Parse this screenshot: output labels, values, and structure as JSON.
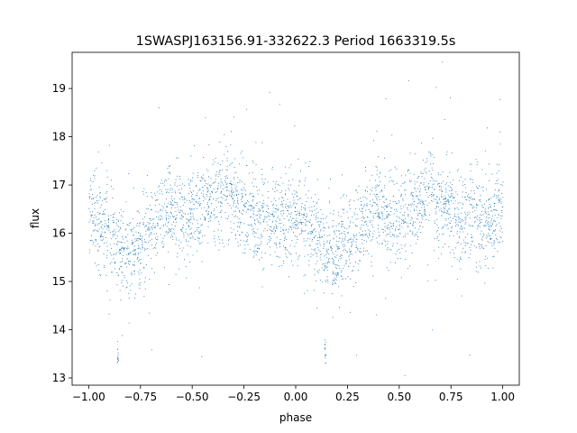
{
  "chart_data": {
    "type": "scatter",
    "title": "1SWASPJ163156.91-332622.3 Period 1663319.5s",
    "xlabel": "phase",
    "ylabel": "flux",
    "xlim": [
      -1.08,
      1.08
    ],
    "ylim": [
      12.85,
      19.75
    ],
    "xticks": [
      -1.0,
      -0.75,
      -0.5,
      -0.25,
      0.0,
      0.25,
      0.5,
      0.75,
      1.0
    ],
    "xtick_labels": [
      "−1.00",
      "−0.75",
      "−0.50",
      "−0.25",
      "0.00",
      "0.25",
      "0.50",
      "0.75",
      "1.00"
    ],
    "yticks": [
      13,
      14,
      15,
      16,
      17,
      18,
      19
    ],
    "ytick_labels": [
      "13",
      "14",
      "15",
      "16",
      "17",
      "18",
      "19"
    ],
    "grid": false,
    "marker_color": "#1f77b4",
    "series": [
      {
        "profile_phase": [
          0.0,
          0.05,
          0.1,
          0.15,
          0.2,
          0.25,
          0.3,
          0.35,
          0.4,
          0.45,
          0.5,
          0.55,
          0.6,
          0.65,
          0.7,
          0.75,
          0.8,
          0.85,
          0.9,
          0.95,
          1.0
        ],
        "profile_flux": [
          16.5,
          16.2,
          15.9,
          15.6,
          15.5,
          15.8,
          16.1,
          16.4,
          16.5,
          16.3,
          16.4,
          16.5,
          16.7,
          16.9,
          16.6,
          16.5,
          16.4,
          16.3,
          16.2,
          16.3,
          16.5
        ],
        "spread_sigma": 0.45,
        "outlier_phases": [
          -0.86,
          0.14
        ],
        "outlier_flux_range": [
          13.3,
          13.8
        ]
      }
    ]
  }
}
